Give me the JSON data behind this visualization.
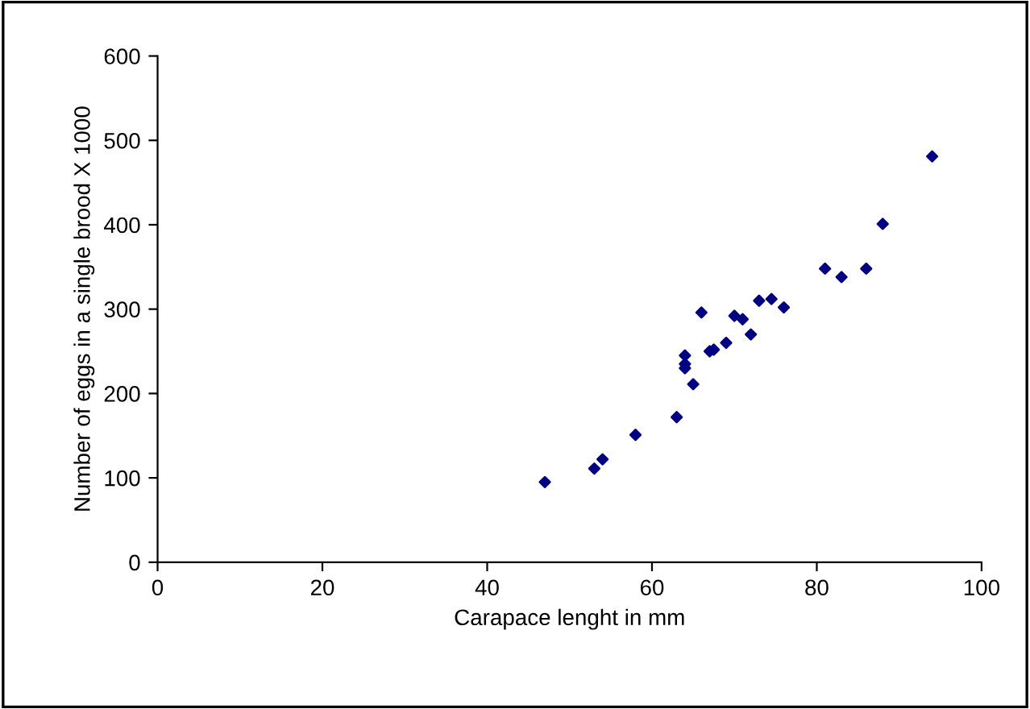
{
  "chart_data": {
    "type": "scatter",
    "xlabel": "Carapace lenght in mm",
    "ylabel": "Number of eggs in a single brood X 1000",
    "x": [
      47,
      53,
      54,
      58,
      63,
      64,
      64,
      64,
      65,
      66,
      67,
      67.5,
      69,
      70,
      71,
      72,
      73,
      74.5,
      76,
      81,
      83,
      86,
      88,
      94
    ],
    "series": [
      {
        "color": "#000080",
        "values": [
          95,
          111,
          122,
          151,
          172,
          245,
          235,
          230,
          211,
          296,
          250,
          252,
          260,
          292,
          288,
          270,
          310,
          312,
          302,
          348,
          338,
          348,
          401,
          481
        ]
      }
    ],
    "xlim": [
      0,
      100
    ],
    "ylim": [
      0,
      600
    ],
    "xticks": [
      0,
      20,
      40,
      60,
      80,
      100
    ],
    "yticks": [
      0,
      100,
      200,
      300,
      400,
      500,
      600
    ],
    "marker": "diamond",
    "grid": false,
    "legend": false
  }
}
